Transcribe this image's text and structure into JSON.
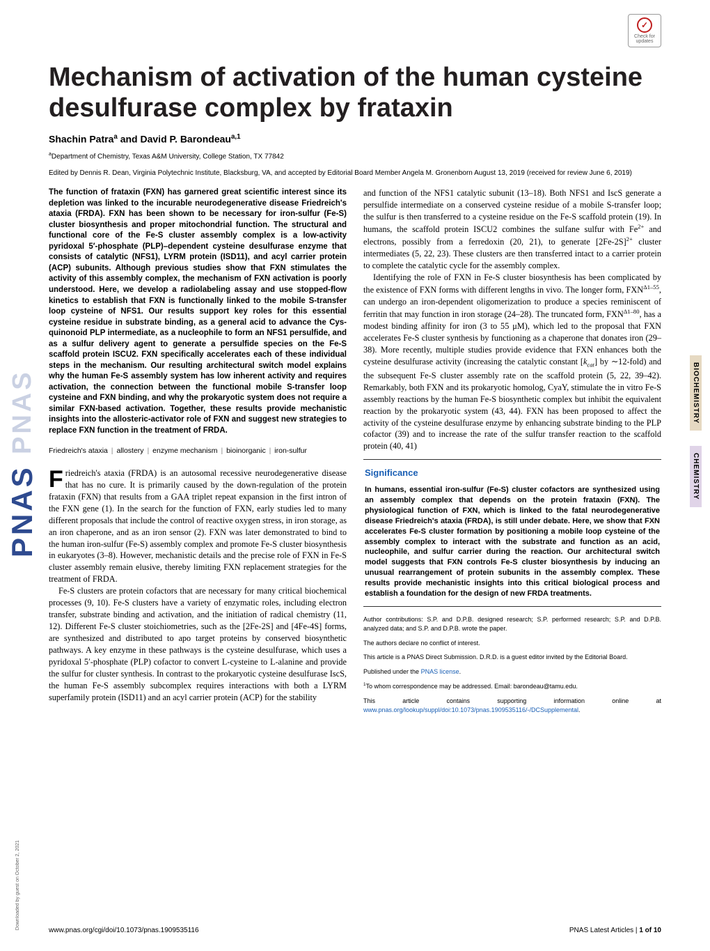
{
  "journal_side": "PNAS",
  "check_badge": {
    "label1": "Check for",
    "label2": "updates"
  },
  "title": "Mechanism of activation of the human cysteine desulfurase complex by frataxin",
  "authors_html": "Shachin Patra<sup>a</sup> and David P. Barondeau<sup>a,1</sup>",
  "affiliation_html": "<sup>a</sup>Department of Chemistry, Texas A&M University, College Station, TX 77842",
  "edited": "Edited by Dennis R. Dean, Virginia Polytechnic Institute, Blacksburg, VA, and accepted by Editorial Board Member Angela M. Gronenborn August 13, 2019 (received for review June 6, 2019)",
  "abstract": "The function of frataxin (FXN) has garnered great scientific interest since its depletion was linked to the incurable neurodegenerative disease Friedreich's ataxia (FRDA). FXN has been shown to be necessary for iron-sulfur (Fe-S) cluster biosynthesis and proper mitochondrial function. The structural and functional core of the Fe-S cluster assembly complex is a low-activity pyridoxal 5′-phosphate (PLP)–dependent cysteine desulfurase enzyme that consists of catalytic (NFS1), LYRM protein (ISD11), and acyl carrier protein (ACP) subunits. Although previous studies show that FXN stimulates the activity of this assembly complex, the mechanism of FXN activation is poorly understood. Here, we develop a radiolabeling assay and use stopped-flow kinetics to establish that FXN is functionally linked to the mobile S-transfer loop cysteine of NFS1. Our results support key roles for this essential cysteine residue in substrate binding, as a general acid to advance the Cys-quinonoid PLP intermediate, as a nucleophile to form an NFS1 persulfide, and as a sulfur delivery agent to generate a persulfide species on the Fe-S scaffold protein ISCU2. FXN specifically accelerates each of these individual steps in the mechanism. Our resulting architectural switch model explains why the human Fe-S assembly system has low inherent activity and requires activation, the connection between the functional mobile S-transfer loop cysteine and FXN binding, and why the prokaryotic system does not require a similar FXN-based activation. Together, these results provide mechanistic insights into the allosteric-activator role of FXN and suggest new strategies to replace FXN function in the treatment of FRDA.",
  "keywords": [
    "Friedreich's ataxia",
    "allostery",
    "enzyme mechanism",
    "bioinorganic",
    "iron-sulfur"
  ],
  "dropcap": "F",
  "intro_p1": "riedreich's ataxia (FRDA) is an autosomal recessive neurodegenerative disease that has no cure. It is primarily caused by the down-regulation of the protein frataxin (FXN) that results from a GAA triplet repeat expansion in the first intron of the FXN gene (1). In the search for the function of FXN, early studies led to many different proposals that include the control of reactive oxygen stress, in iron storage, as an iron chaperone, and as an iron sensor (2). FXN was later demonstrated to bind to the human iron-sulfur (Fe-S) assembly complex and promote Fe-S cluster biosynthesis in eukaryotes (3–8). However, mechanistic details and the precise role of FXN in Fe-S cluster assembly remain elusive, thereby limiting FXN replacement strategies for the treatment of FRDA.",
  "intro_p2": "Fe-S clusters are protein cofactors that are necessary for many critical biochemical processes (9, 10). Fe-S clusters have a variety of enzymatic roles, including electron transfer, substrate binding and activation, and the initiation of radical chemistry (11, 12). Different Fe-S cluster stoichiometries, such as the [2Fe-2S] and [4Fe-4S] forms, are synthesized and distributed to apo target proteins by conserved biosynthetic pathways. A key enzyme in these pathways is the cysteine desulfurase, which uses a pyridoxal 5′-phosphate (PLP) cofactor to convert L-cysteine to L-alanine and provide the sulfur for cluster synthesis. In contrast to the prokaryotic cysteine desulfurase IscS, the human Fe-S assembly subcomplex requires interactions with both a LYRM superfamily protein (ISD11) and an acyl carrier protein (ACP) for the stability",
  "col2_p1_html": "and function of the NFS1 catalytic subunit (13–18). Both NFS1 and IscS generate a persulfide intermediate on a conserved cysteine residue of a mobile S-transfer loop; the sulfur is then transferred to a cysteine residue on the Fe-S scaffold protein (19). In humans, the scaffold protein ISCU2 combines the sulfane sulfur with Fe<sup>2+</sup> and electrons, possibly from a ferredoxin (20, 21), to generate [2Fe-2S]<sup>2+</sup> cluster intermediates (5, 22, 23). These clusters are then transferred intact to a carrier protein to complete the catalytic cycle for the assembly complex.",
  "col2_p2_html": "Identifying the role of FXN in Fe-S cluster biosynthesis has been complicated by the existence of FXN forms with different lengths in vivo. The longer form, FXN<sup>Δ1–55</sup>, can undergo an iron-dependent oligomerization to produce a species reminiscent of ferritin that may function in iron storage (24–28). The truncated form, FXN<sup>Δ1–80</sup>, has a modest binding affinity for iron (3 to 55 μM), which led to the proposal that FXN accelerates Fe-S cluster synthesis by functioning as a chaperone that donates iron (29–38). More recently, multiple studies provide evidence that FXN enhances both the cysteine desulfurase activity (increasing the catalytic constant [<i>k<sub>cat</sub></i>] by ∼12-fold) and the subsequent Fe-S cluster assembly rate on the scaffold protein (5, 22, 39–42). Remarkably, both FXN and its prokaryotic homolog, CyaY, stimulate the in vitro Fe-S assembly reactions by the human Fe-S biosynthetic complex but inhibit the equivalent reaction by the prokaryotic system (43, 44). FXN has been proposed to affect the activity of the cysteine desulfurase enzyme by enhancing substrate binding to the PLP cofactor (39) and to increase the rate of the sulfur transfer reaction to the scaffold protein (40, 41)",
  "significance": {
    "heading": "Significance",
    "text": "In humans, essential iron-sulfur (Fe-S) cluster cofactors are synthesized using an assembly complex that depends on the protein frataxin (FXN). The physiological function of FXN, which is linked to the fatal neurodegenerative disease Friedreich's ataxia (FRDA), is still under debate. Here, we show that FXN accelerates Fe-S cluster formation by positioning a mobile loop cysteine of the assembly complex to interact with the substrate and function as an acid, nucleophile, and sulfur carrier during the reaction. Our architectural switch model suggests that FXN controls Fe-S cluster biosynthesis by inducing an unusual rearrangement of protein subunits in the assembly complex. These results provide mechanistic insights into this critical biological process and establish a foundation for the design of new FRDA treatments."
  },
  "meta": {
    "author_contrib": "Author contributions: S.P. and D.P.B. designed research; S.P. performed research; S.P. and D.P.B. analyzed data; and S.P. and D.P.B. wrote the paper.",
    "conflict": "The authors declare no conflict of interest.",
    "submission": "This article is a PNAS Direct Submission. D.R.D. is a guest editor invited by the Editorial Board.",
    "license_prefix": "Published under the ",
    "license_link": "PNAS license",
    "license_suffix": ".",
    "corresponding_html": "<sup>1</sup>To whom correspondence may be addressed. Email: barondeau@tamu.edu.",
    "si_prefix": "This article contains supporting information online at ",
    "si_link": "www.pnas.org/lookup/suppl/doi:10.1073/pnas.1909535116/-/DCSupplemental",
    "si_suffix": "."
  },
  "footer": {
    "left": "www.pnas.org/cgi/doi/10.1073/pnas.1909535116",
    "right_html": "PNAS Latest Articles | <b>1 of 10</b>"
  },
  "side_labels": {
    "biochem": "BIOCHEMISTRY",
    "chem": "CHEMISTRY"
  },
  "download_note": "Downloaded by guest on October 2, 2021"
}
